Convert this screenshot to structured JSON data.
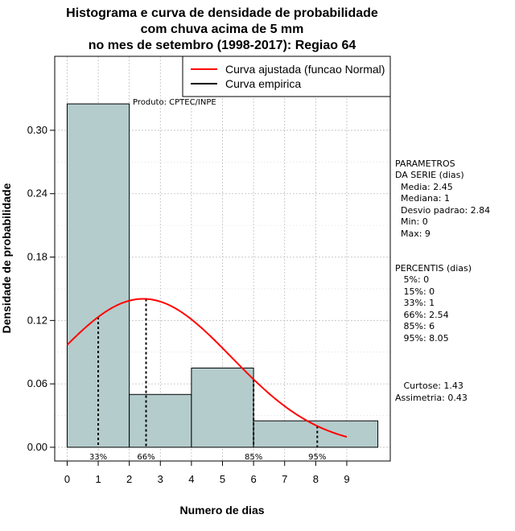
{
  "chart_data": {
    "type": "histogram",
    "title_lines": [
      "Histograma e curva de densidade de probabilidade",
      "com chuva acima de 5 mm",
      "no mes de setembro (1998-2017): Regiao 64"
    ],
    "xlabel": "Numero de dias",
    "ylabel": "Densidade de probabilidade",
    "xlim": [
      -0.4,
      10.4
    ],
    "ylim": [
      -0.013,
      0.37
    ],
    "x_ticks": [
      0,
      1,
      2,
      3,
      4,
      5,
      6,
      7,
      8,
      9
    ],
    "y_ticks": [
      0.0,
      0.06,
      0.12,
      0.18,
      0.24,
      0.3
    ],
    "y_tick_labels": [
      "0.00",
      "0.06",
      "0.12",
      "0.18",
      "0.24",
      "0.30"
    ],
    "bars": [
      {
        "x0": 0,
        "x1": 2,
        "density": 0.325
      },
      {
        "x0": 2,
        "x1": 4,
        "density": 0.05
      },
      {
        "x0": 4,
        "x1": 6,
        "density": 0.075
      },
      {
        "x0": 6,
        "x1": 10,
        "density": 0.025
      }
    ],
    "bar_color": "#b5cccc",
    "normal_curve": {
      "mean": 2.45,
      "sd": 2.84,
      "x_from": 0,
      "x_to": 9,
      "color": "#ff0000"
    },
    "percentile_markers": [
      {
        "x": 1,
        "label": "33%"
      },
      {
        "x": 2.54,
        "label": "66%"
      },
      {
        "x": 6,
        "label": "85%"
      },
      {
        "x": 8.05,
        "label": "95%"
      }
    ],
    "legend": {
      "position": "top-right",
      "entries": [
        {
          "label": "Curva ajustada (funcao Normal)",
          "color": "#ff0000"
        },
        {
          "label": "Curva empirica",
          "color": "#000000"
        }
      ]
    },
    "annotation": "Produto: CPTEC/INPE",
    "grid": true
  },
  "side_panel": {
    "parametros": [
      "PARAMETROS",
      "DA SERIE (dias)",
      "  Media: 2.45",
      "  Mediana: 1",
      "  Desvio padrao: 2.84",
      "  Min: 0",
      "  Max: 9"
    ],
    "percentis": [
      "PERCENTIS (dias)",
      "   5%: 0",
      "   15%: 0",
      "   33%: 1",
      "   66%: 2.54",
      "   85%: 6",
      "   95%: 8.05"
    ],
    "shape": [
      "   Curtose: 1.43",
      "Assimetria: 0.43"
    ]
  }
}
